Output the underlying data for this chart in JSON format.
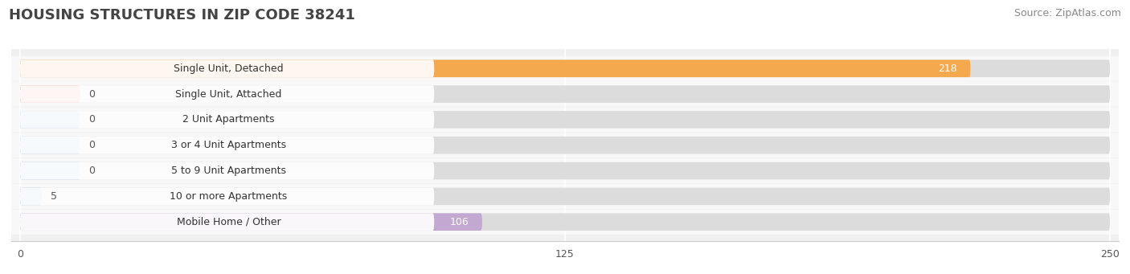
{
  "title": "HOUSING STRUCTURES IN ZIP CODE 38241",
  "source": "Source: ZipAtlas.com",
  "categories": [
    "Single Unit, Detached",
    "Single Unit, Attached",
    "2 Unit Apartments",
    "3 or 4 Unit Apartments",
    "5 to 9 Unit Apartments",
    "10 or more Apartments",
    "Mobile Home / Other"
  ],
  "values": [
    218,
    0,
    0,
    0,
    0,
    5,
    106
  ],
  "bar_colors": [
    "#F5A94E",
    "#F4908A",
    "#A8C4E0",
    "#A8C4E0",
    "#A8C4E0",
    "#A8C4E0",
    "#C3A8D1"
  ],
  "xlim": [
    0,
    250
  ],
  "xticks": [
    0,
    125,
    250
  ],
  "background_color": "#f0f0f0",
  "bar_bg_color": "#dcdcdc",
  "title_fontsize": 13,
  "source_fontsize": 9,
  "label_fontsize": 9,
  "value_fontsize": 9,
  "bar_height": 0.68,
  "fig_bg_color": "#ffffff",
  "label_pill_color": "#ffffff",
  "label_text_color": "#333333",
  "value_text_color_inside": "#ffffff",
  "value_text_color_outside": "#555555"
}
